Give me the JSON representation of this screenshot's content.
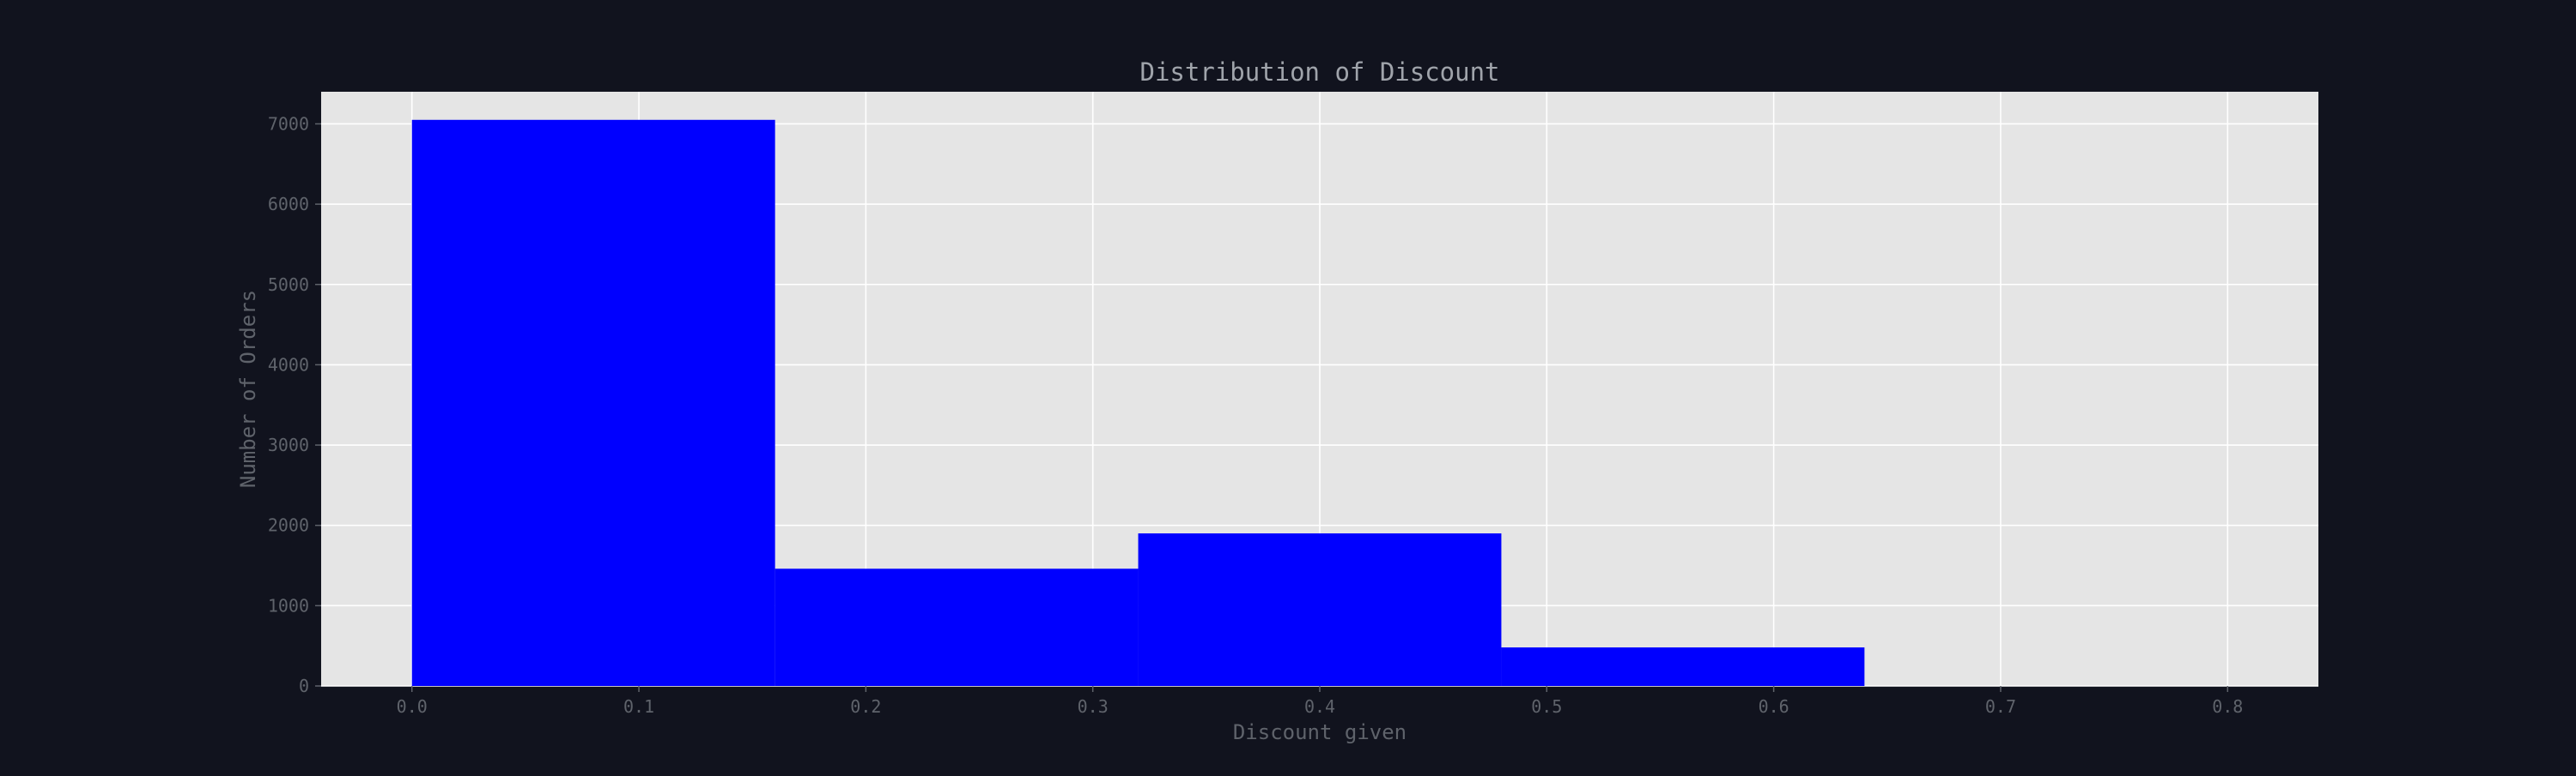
{
  "colors": {
    "page_background": "#11131e",
    "plot_background": "#e5e5e5",
    "grid": "#ffffff",
    "bar": "#0000ff",
    "title_text": "#a0a4ab",
    "axis_text": "#5f636b"
  },
  "chart_data": {
    "type": "bar",
    "title": "Distribution of Discount",
    "xlabel": "Discount given",
    "ylabel": "Number of Orders",
    "xlim": [
      -0.04,
      0.84
    ],
    "ylim": [
      0,
      7400
    ],
    "xticks": [
      0.0,
      0.1,
      0.2,
      0.3,
      0.4,
      0.5,
      0.6,
      0.7,
      0.8
    ],
    "xtick_labels": [
      "0.0",
      "0.1",
      "0.2",
      "0.3",
      "0.4",
      "0.5",
      "0.6",
      "0.7",
      "0.8"
    ],
    "yticks": [
      0,
      1000,
      2000,
      3000,
      4000,
      5000,
      6000,
      7000
    ],
    "ytick_labels": [
      "0",
      "1000",
      "2000",
      "3000",
      "4000",
      "5000",
      "6000",
      "7000"
    ],
    "grid": true,
    "bins": [
      {
        "start": 0.0,
        "end": 0.16,
        "count": 7050
      },
      {
        "start": 0.16,
        "end": 0.32,
        "count": 1460
      },
      {
        "start": 0.32,
        "end": 0.48,
        "count": 1900
      },
      {
        "start": 0.48,
        "end": 0.64,
        "count": 480
      }
    ]
  }
}
